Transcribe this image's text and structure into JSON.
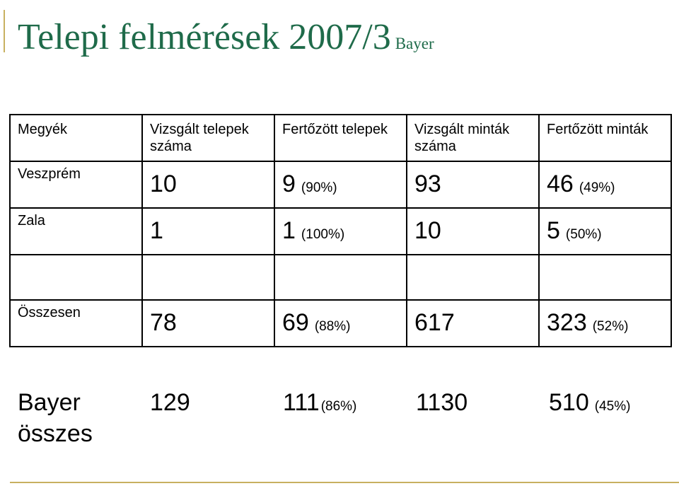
{
  "title": {
    "main": "Telepi felmérések 2007/3",
    "sub": "Bayer"
  },
  "table": {
    "headers": [
      "Megyék",
      "Vizsgált telepek száma",
      "Fertőzött telepek",
      "Vizsgált minták száma",
      "Fertőzött minták"
    ],
    "rows": [
      {
        "label": "Veszprém",
        "telepek": "10",
        "fert_telepek": "9",
        "fert_telepek_pct": "(90%)",
        "mintak": "93",
        "fert_mintak": "46",
        "fert_mintak_pct": "(49%)"
      },
      {
        "label": "Zala",
        "telepek": "1",
        "fert_telepek": "1",
        "fert_telepek_pct": "(100%)",
        "mintak": "10",
        "fert_mintak": "5",
        "fert_mintak_pct": "(50%)"
      }
    ],
    "total": {
      "label": "Összesen",
      "telepek": "78",
      "fert_telepek": "69",
      "fert_telepek_pct": "(88%)",
      "mintak": "617",
      "fert_mintak": "323",
      "fert_mintak_pct": "(52%)"
    }
  },
  "bayer": {
    "label": "Bayer összes",
    "telepek": "129",
    "fert_telepek": "111",
    "fert_telepek_pct": "(86%)",
    "mintak": "1130",
    "fert_mintak": "510",
    "fert_mintak_pct": "(45%)"
  },
  "colors": {
    "title": "#1f6b4a",
    "accent_line": "#c8b060",
    "border": "#000000"
  }
}
